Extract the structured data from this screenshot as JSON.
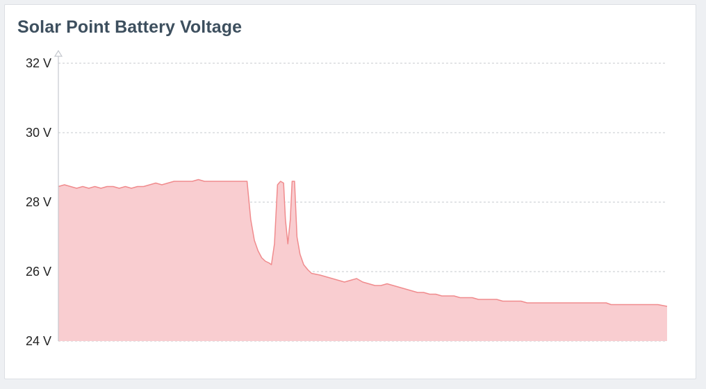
{
  "panel": {
    "title": "Solar Point Battery Voltage"
  },
  "colors": {
    "series_line": "#f08b8d",
    "series_fill": "#f9cdd0",
    "grid": "#c4c8ce",
    "axis": "#c4c8ce",
    "title": "#3d4f5e"
  },
  "chart_data": {
    "type": "area",
    "title": "Solar Point Battery Voltage",
    "xlabel": "",
    "ylabel": "",
    "ylim": [
      24,
      32
    ],
    "y_unit": "V",
    "y_ticks": [
      {
        "value": 32,
        "label": "32 V"
      },
      {
        "value": 30,
        "label": "30 V"
      },
      {
        "value": 28,
        "label": "28 V"
      },
      {
        "value": 26,
        "label": "26 V"
      },
      {
        "value": 24,
        "label": "24 V"
      }
    ],
    "grid": true,
    "legend": "none",
    "series": [
      {
        "points": [
          [
            0,
            28.45
          ],
          [
            1,
            28.5
          ],
          [
            2,
            28.45
          ],
          [
            3,
            28.4
          ],
          [
            4,
            28.45
          ],
          [
            5,
            28.4
          ],
          [
            6,
            28.45
          ],
          [
            7,
            28.4
          ],
          [
            8,
            28.45
          ],
          [
            9,
            28.45
          ],
          [
            10,
            28.4
          ],
          [
            11,
            28.45
          ],
          [
            12,
            28.4
          ],
          [
            13,
            28.45
          ],
          [
            14,
            28.45
          ],
          [
            15,
            28.5
          ],
          [
            16,
            28.55
          ],
          [
            17,
            28.5
          ],
          [
            18,
            28.55
          ],
          [
            19,
            28.6
          ],
          [
            20,
            28.6
          ],
          [
            21,
            28.6
          ],
          [
            22,
            28.6
          ],
          [
            23,
            28.65
          ],
          [
            24,
            28.6
          ],
          [
            25,
            28.6
          ],
          [
            26,
            28.6
          ],
          [
            27,
            28.6
          ],
          [
            28,
            28.6
          ],
          [
            29,
            28.6
          ],
          [
            30,
            28.6
          ],
          [
            31,
            28.6
          ],
          [
            31.6,
            27.5
          ],
          [
            32.2,
            26.9
          ],
          [
            32.8,
            26.6
          ],
          [
            33.4,
            26.4
          ],
          [
            34.0,
            26.3
          ],
          [
            34.6,
            26.25
          ],
          [
            35.0,
            26.2
          ],
          [
            35.5,
            26.8
          ],
          [
            36.0,
            28.5
          ],
          [
            36.5,
            28.6
          ],
          [
            37.0,
            28.55
          ],
          [
            37.3,
            27.5
          ],
          [
            37.7,
            26.8
          ],
          [
            38.1,
            27.5
          ],
          [
            38.4,
            28.6
          ],
          [
            38.8,
            28.6
          ],
          [
            39.2,
            27.0
          ],
          [
            39.7,
            26.5
          ],
          [
            40.3,
            26.2
          ],
          [
            41.0,
            26.05
          ],
          [
            41.6,
            25.95
          ],
          [
            43,
            25.9
          ],
          [
            44,
            25.85
          ],
          [
            45,
            25.8
          ],
          [
            46,
            25.75
          ],
          [
            47,
            25.7
          ],
          [
            48,
            25.75
          ],
          [
            49,
            25.8
          ],
          [
            50,
            25.7
          ],
          [
            51,
            25.65
          ],
          [
            52,
            25.6
          ],
          [
            53,
            25.6
          ],
          [
            54,
            25.65
          ],
          [
            55,
            25.6
          ],
          [
            56,
            25.55
          ],
          [
            57,
            25.5
          ],
          [
            58,
            25.45
          ],
          [
            59,
            25.4
          ],
          [
            60,
            25.4
          ],
          [
            61,
            25.35
          ],
          [
            62,
            25.35
          ],
          [
            63,
            25.3
          ],
          [
            64,
            25.3
          ],
          [
            65,
            25.3
          ],
          [
            66,
            25.25
          ],
          [
            67,
            25.25
          ],
          [
            68,
            25.25
          ],
          [
            69,
            25.2
          ],
          [
            70,
            25.2
          ],
          [
            71,
            25.2
          ],
          [
            72,
            25.2
          ],
          [
            73,
            25.15
          ],
          [
            74,
            25.15
          ],
          [
            75,
            25.15
          ],
          [
            76,
            25.15
          ],
          [
            77,
            25.1
          ],
          [
            78,
            25.1
          ],
          [
            79,
            25.1
          ],
          [
            80,
            25.1
          ],
          [
            81,
            25.1
          ],
          [
            82,
            25.1
          ],
          [
            83,
            25.1
          ],
          [
            84,
            25.1
          ],
          [
            85,
            25.1
          ],
          [
            86,
            25.1
          ],
          [
            87,
            25.1
          ],
          [
            88,
            25.1
          ],
          [
            89,
            25.1
          ],
          [
            90,
            25.1
          ],
          [
            90.8,
            25.05
          ],
          [
            91.5,
            25.05
          ],
          [
            92.5,
            25.05
          ],
          [
            93.5,
            25.05
          ],
          [
            94.5,
            25.05
          ],
          [
            95.5,
            25.05
          ],
          [
            96.5,
            25.05
          ],
          [
            97.5,
            25.05
          ],
          [
            98.5,
            25.05
          ],
          [
            100,
            25.0
          ]
        ]
      }
    ]
  }
}
